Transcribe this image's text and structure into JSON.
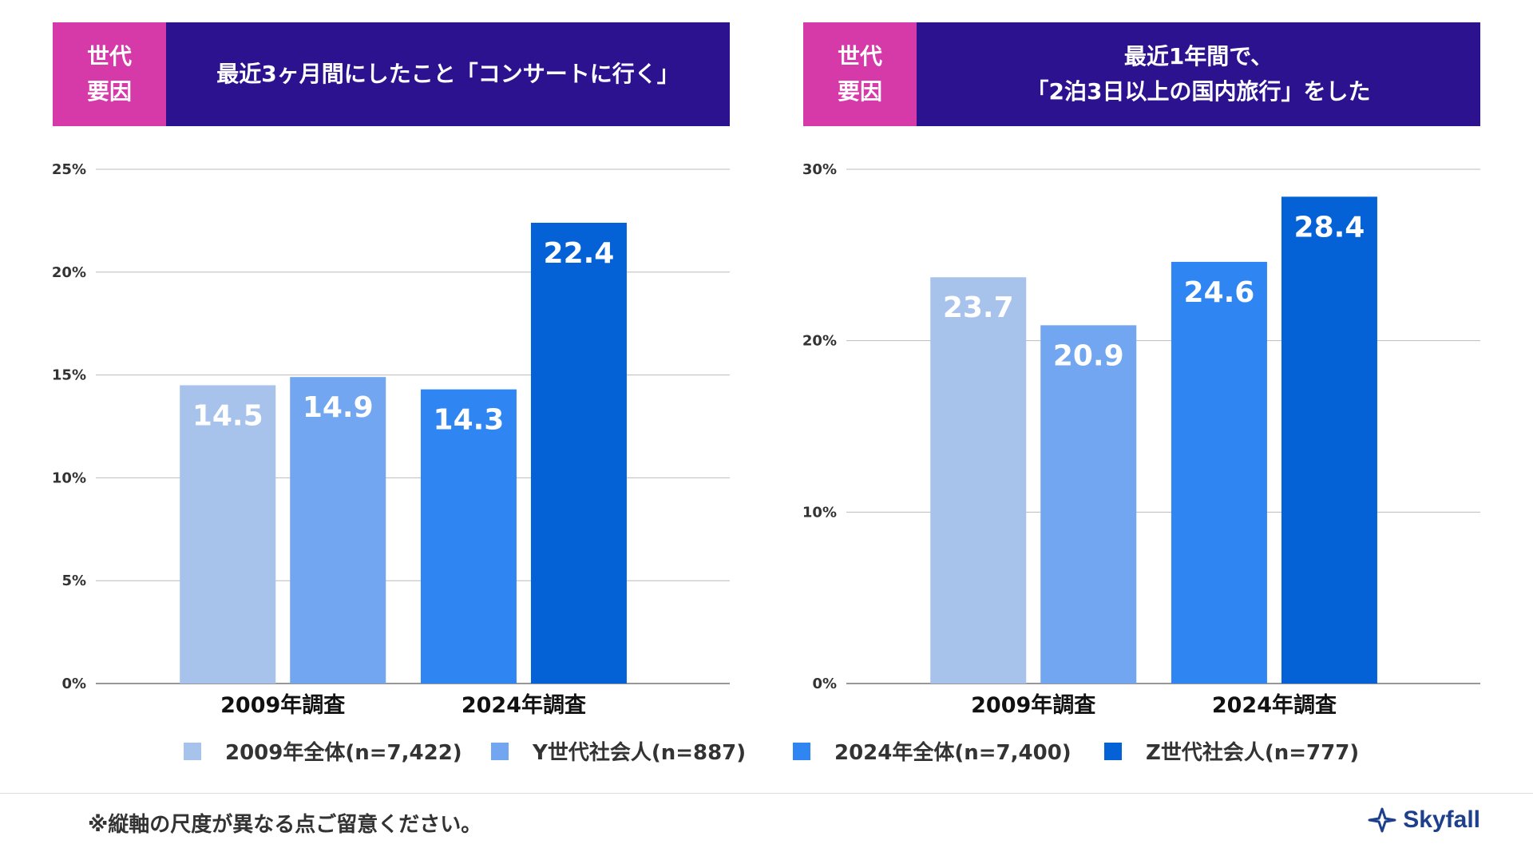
{
  "panels": [
    {
      "tag": "世代\n要因",
      "title": "最近3ヶ月間にしたこと「コンサートに行く」"
    },
    {
      "tag": "世代\n要因",
      "title": "最近1年間で、\n「2泊3日以上の国内旅行」をした"
    }
  ],
  "colors": {
    "s2009": "#a7c3ec",
    "y": "#72a6f1",
    "s2024": "#2f86f3",
    "z": "#0561d6",
    "tag_bg": "#d63aa8",
    "title_bg": "#2d1290"
  },
  "chart_data": [
    {
      "type": "bar",
      "categories": [
        "2009年調査",
        "2024年調査"
      ],
      "series": [
        {
          "name": "2009年全体(n=7,422)",
          "values": [
            14.5,
            null
          ],
          "color": "#a7c3ec"
        },
        {
          "name": "Y世代社会人(n=887)",
          "values": [
            14.9,
            null
          ],
          "color": "#72a6f1"
        },
        {
          "name": "2024年全体(n=7,400)",
          "values": [
            null,
            14.3
          ],
          "color": "#2f86f3"
        },
        {
          "name": "Z世代社会人(n=777)",
          "values": [
            null,
            22.4
          ],
          "color": "#0561d6"
        }
      ],
      "ylim": [
        0,
        25
      ],
      "yticks": [
        0,
        5,
        10,
        15,
        20,
        25
      ],
      "ytick_labels": [
        "0%",
        "5%",
        "10%",
        "15%",
        "20%",
        "25%"
      ],
      "grid": true
    },
    {
      "type": "bar",
      "categories": [
        "2009年調査",
        "2024年調査"
      ],
      "series": [
        {
          "name": "2009年全体(n=7,422)",
          "values": [
            23.7,
            null
          ],
          "color": "#a7c3ec"
        },
        {
          "name": "Y世代社会人(n=887)",
          "values": [
            20.9,
            null
          ],
          "color": "#72a6f1"
        },
        {
          "name": "2024年全体(n=7,400)",
          "values": [
            null,
            24.6
          ],
          "color": "#2f86f3"
        },
        {
          "name": "Z世代社会人(n=777)",
          "values": [
            null,
            28.4
          ],
          "color": "#0561d6"
        }
      ],
      "ylim": [
        0,
        30
      ],
      "yticks": [
        0,
        10,
        20,
        30
      ],
      "ytick_labels": [
        "0%",
        "10%",
        "20%",
        "30%"
      ],
      "grid": true
    }
  ],
  "legend": [
    {
      "label": "2009年全体(n=7,422)",
      "color": "#a7c3ec"
    },
    {
      "label": "Y世代社会人(n=887)",
      "color": "#72a6f1"
    },
    {
      "label": "2024年全体(n=7,400)",
      "color": "#2f86f3"
    },
    {
      "label": "Z世代社会人(n=777)",
      "color": "#0561d6"
    }
  ],
  "footnote": "※縦軸の尺度が異なる点ご留意ください。",
  "logo": {
    "text": "Skyfall",
    "icon": "skyfall-logo-icon"
  }
}
